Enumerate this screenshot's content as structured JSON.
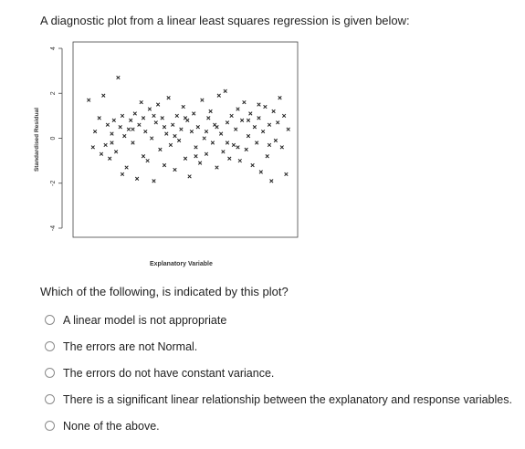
{
  "question": {
    "intro": "A diagnostic plot from a linear least squares regression is given below:",
    "prompt": "Which of the following,  is indicated by this plot?",
    "options": [
      {
        "label": "A linear model is not appropriate"
      },
      {
        "label": "The errors are not Normal."
      },
      {
        "label": "The errors do not have constant variance."
      },
      {
        "label": "There is a significant linear relationship between the explanatory and response variables."
      },
      {
        "label": "None of the above."
      }
    ]
  },
  "chart_data": {
    "type": "scatter",
    "xlabel": "Explanatory Variable",
    "ylabel": "Standardised Residual",
    "ylim": [
      -4,
      4
    ],
    "yticks": [
      "-4",
      "-2",
      "0",
      "2",
      "4"
    ],
    "marker": "x",
    "grid": false,
    "points": [
      [
        0.04,
        1.7
      ],
      [
        0.06,
        -0.4
      ],
      [
        0.07,
        0.3
      ],
      [
        0.09,
        0.9
      ],
      [
        0.1,
        -0.7
      ],
      [
        0.11,
        1.9
      ],
      [
        0.12,
        -0.3
      ],
      [
        0.13,
        0.6
      ],
      [
        0.14,
        -0.9
      ],
      [
        0.15,
        0.2
      ],
      [
        0.16,
        0.8
      ],
      [
        0.17,
        -0.6
      ],
      [
        0.18,
        2.7
      ],
      [
        0.19,
        0.5
      ],
      [
        0.2,
        -1.6
      ],
      [
        0.21,
        0.1
      ],
      [
        0.22,
        -1.3
      ],
      [
        0.23,
        0.4
      ],
      [
        0.24,
        0.8
      ],
      [
        0.25,
        -0.2
      ],
      [
        0.26,
        1.1
      ],
      [
        0.27,
        -1.8
      ],
      [
        0.28,
        0.6
      ],
      [
        0.29,
        1.6
      ],
      [
        0.3,
        -0.8
      ],
      [
        0.31,
        0.3
      ],
      [
        0.32,
        -1.0
      ],
      [
        0.33,
        1.3
      ],
      [
        0.34,
        0.0
      ],
      [
        0.35,
        -1.9
      ],
      [
        0.36,
        0.7
      ],
      [
        0.37,
        1.5
      ],
      [
        0.38,
        -0.5
      ],
      [
        0.39,
        0.9
      ],
      [
        0.4,
        -1.2
      ],
      [
        0.41,
        0.2
      ],
      [
        0.42,
        1.8
      ],
      [
        0.43,
        -0.3
      ],
      [
        0.44,
        0.6
      ],
      [
        0.45,
        -1.4
      ],
      [
        0.46,
        1.0
      ],
      [
        0.47,
        -0.1
      ],
      [
        0.48,
        0.4
      ],
      [
        0.49,
        1.4
      ],
      [
        0.5,
        -0.9
      ],
      [
        0.51,
        0.8
      ],
      [
        0.52,
        -1.7
      ],
      [
        0.53,
        0.3
      ],
      [
        0.54,
        1.1
      ],
      [
        0.55,
        -0.4
      ],
      [
        0.56,
        0.5
      ],
      [
        0.57,
        -1.1
      ],
      [
        0.58,
        1.7
      ],
      [
        0.59,
        0.0
      ],
      [
        0.6,
        -0.7
      ],
      [
        0.61,
        0.9
      ],
      [
        0.62,
        1.2
      ],
      [
        0.63,
        -0.2
      ],
      [
        0.64,
        0.6
      ],
      [
        0.65,
        -1.3
      ],
      [
        0.66,
        1.9
      ],
      [
        0.67,
        0.2
      ],
      [
        0.68,
        -0.6
      ],
      [
        0.69,
        2.1
      ],
      [
        0.7,
        0.7
      ],
      [
        0.71,
        -0.9
      ],
      [
        0.72,
        1.0
      ],
      [
        0.73,
        -0.3
      ],
      [
        0.74,
        0.4
      ],
      [
        0.75,
        1.3
      ],
      [
        0.76,
        -1.0
      ],
      [
        0.77,
        0.8
      ],
      [
        0.78,
        1.6
      ],
      [
        0.79,
        -0.5
      ],
      [
        0.8,
        0.1
      ],
      [
        0.81,
        1.1
      ],
      [
        0.82,
        -1.2
      ],
      [
        0.83,
        0.5
      ],
      [
        0.84,
        -0.2
      ],
      [
        0.85,
        0.9
      ],
      [
        0.86,
        -1.5
      ],
      [
        0.87,
        0.3
      ],
      [
        0.88,
        1.4
      ],
      [
        0.89,
        -0.8
      ],
      [
        0.9,
        0.6
      ],
      [
        0.91,
        -1.9
      ],
      [
        0.92,
        1.2
      ],
      [
        0.93,
        -0.1
      ],
      [
        0.94,
        0.7
      ],
      [
        0.95,
        1.8
      ],
      [
        0.96,
        -0.4
      ],
      [
        0.97,
        1.0
      ],
      [
        0.98,
        -1.6
      ],
      [
        0.99,
        0.4
      ],
      [
        0.35,
        1.0
      ],
      [
        0.45,
        0.1
      ],
      [
        0.55,
        -0.8
      ],
      [
        0.65,
        0.5
      ],
      [
        0.75,
        -0.4
      ],
      [
        0.85,
        1.5
      ],
      [
        0.25,
        0.4
      ],
      [
        0.15,
        -0.2
      ],
      [
        0.5,
        0.9
      ],
      [
        0.6,
        0.3
      ],
      [
        0.7,
        -0.2
      ],
      [
        0.8,
        0.8
      ],
      [
        0.9,
        -0.3
      ],
      [
        0.3,
        0.9
      ],
      [
        0.4,
        0.5
      ],
      [
        0.2,
        1.0
      ]
    ]
  }
}
